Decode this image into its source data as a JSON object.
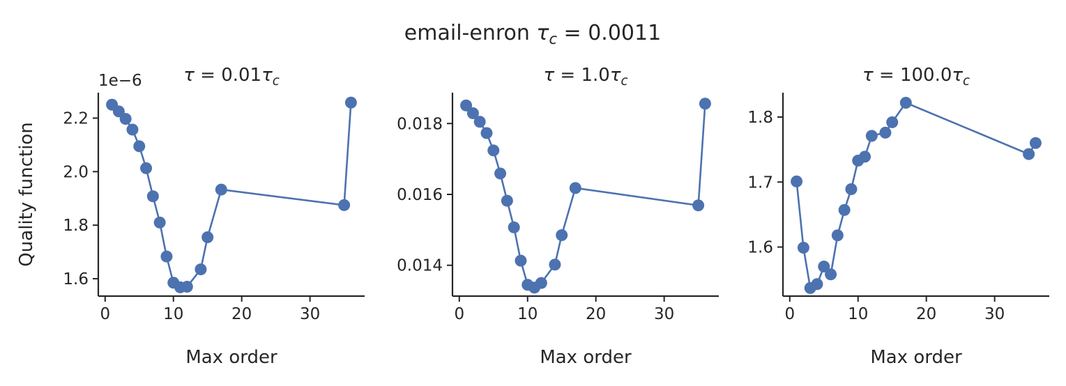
{
  "figure": {
    "suptitle": "email-enron τ_c = 0.0011",
    "series_color": "#4c72b0"
  },
  "chart_data": [
    {
      "type": "line",
      "title": "τ = 0.01τ_c",
      "xlabel": "Max order",
      "ylabel": "Quality function",
      "xlim": [
        -1,
        38
      ],
      "ylim": [
        1.535,
        2.295
      ],
      "y_scale_label": "1e−6",
      "xticks": [
        0,
        10,
        20,
        30
      ],
      "yticks": [
        1.6,
        1.8,
        2.0,
        2.2
      ],
      "ytick_labels": [
        "1.6",
        "1.8",
        "2.0",
        "2.2"
      ],
      "x": [
        1,
        2,
        3,
        4,
        5,
        6,
        7,
        8,
        9,
        10,
        11,
        12,
        14,
        15,
        17,
        35,
        36
      ],
      "y": [
        2.25,
        2.225,
        2.197,
        2.157,
        2.095,
        2.013,
        1.908,
        1.81,
        1.683,
        1.585,
        1.568,
        1.57,
        1.635,
        1.755,
        1.933,
        1.875,
        2.258
      ]
    },
    {
      "type": "line",
      "title": "τ = 1.0τ_c",
      "xlabel": "Max order",
      "ylabel": "",
      "xlim": [
        -1,
        38
      ],
      "ylim": [
        0.01313,
        0.01887
      ],
      "xticks": [
        0,
        10,
        20,
        30
      ],
      "yticks": [
        0.014,
        0.016,
        0.018
      ],
      "ytick_labels": [
        "0.014",
        "0.016",
        "0.018"
      ],
      "x": [
        1,
        2,
        3,
        4,
        5,
        6,
        7,
        8,
        9,
        10,
        11,
        12,
        14,
        15,
        17,
        35,
        36
      ],
      "y": [
        0.01851,
        0.01829,
        0.01805,
        0.01773,
        0.01724,
        0.01659,
        0.01582,
        0.01507,
        0.01413,
        0.01345,
        0.01337,
        0.0135,
        0.01402,
        0.01485,
        0.01618,
        0.01569,
        0.01856
      ]
    },
    {
      "type": "line",
      "title": "τ = 100.0τ_c",
      "xlabel": "Max order",
      "ylabel": "",
      "xlim": [
        -1,
        38
      ],
      "ylim": [
        1.5245,
        1.8375
      ],
      "xticks": [
        0,
        10,
        20,
        30
      ],
      "yticks": [
        1.6,
        1.7,
        1.8
      ],
      "ytick_labels": [
        "1.6",
        "1.7",
        "1.8"
      ],
      "x": [
        1,
        2,
        3,
        4,
        5,
        6,
        7,
        8,
        9,
        10,
        11,
        12,
        14,
        15,
        17,
        35,
        36
      ],
      "y": [
        1.701,
        1.599,
        1.537,
        1.543,
        1.57,
        1.558,
        1.618,
        1.657,
        1.689,
        1.733,
        1.739,
        1.771,
        1.776,
        1.792,
        1.822,
        1.743,
        1.76
      ]
    }
  ]
}
